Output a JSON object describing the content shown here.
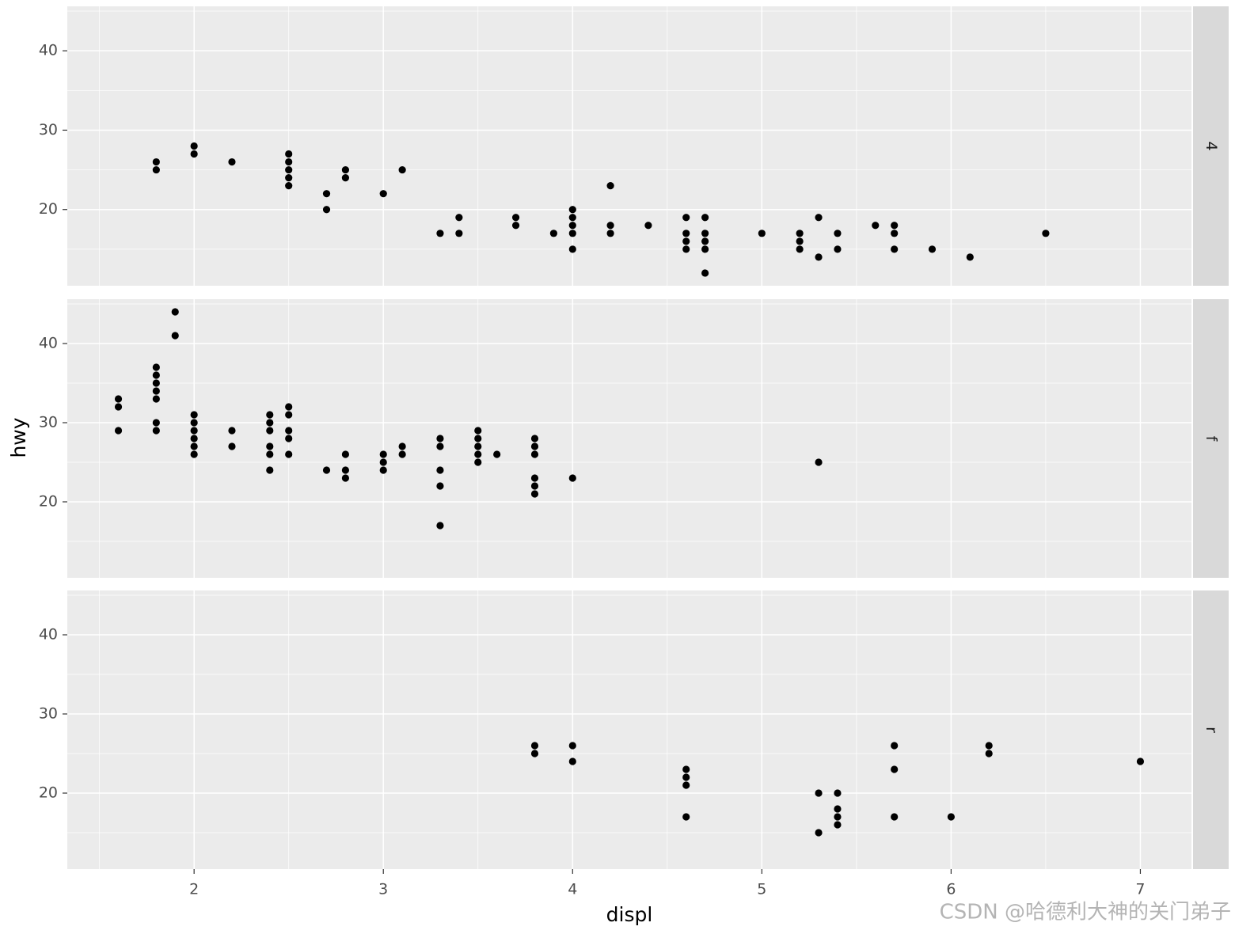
{
  "chart_data": [
    {
      "type": "scatter",
      "strip": "4",
      "color": "#000000",
      "grid": true,
      "xlim": [
        1.33,
        7.27
      ],
      "ylim": [
        10.4,
        45.6
      ],
      "yticks": [
        20,
        30,
        40
      ],
      "x": [
        1.8,
        1.8,
        2,
        2,
        2.2,
        2.5,
        2.5,
        2.5,
        2.5,
        2.5,
        2.7,
        2.7,
        2.8,
        2.8,
        3,
        3.1,
        3.3,
        3.4,
        3.4,
        3.7,
        3.7,
        3.9,
        4,
        4,
        4,
        4,
        4,
        4.2,
        4.2,
        4.2,
        4.4,
        4.6,
        4.6,
        4.6,
        4.6,
        4.7,
        4.7,
        4.7,
        4.7,
        4.7,
        5,
        5.2,
        5.2,
        5.2,
        5.3,
        5.3,
        5.4,
        5.4,
        5.6,
        5.7,
        5.7,
        5.7,
        5.9,
        6.1,
        6.5
      ],
      "values": [
        26,
        25,
        28,
        27,
        26,
        27,
        26,
        25,
        24,
        23,
        22,
        20,
        25,
        24,
        22,
        25,
        17,
        19,
        17,
        19,
        18,
        17,
        20,
        19,
        18,
        17,
        15,
        23,
        18,
        17,
        18,
        19,
        17,
        16,
        15,
        19,
        17,
        16,
        15,
        12,
        17,
        17,
        16,
        15,
        19,
        14,
        17,
        15,
        18,
        18,
        17,
        15,
        15,
        14,
        17
      ]
    },
    {
      "type": "scatter",
      "strip": "f",
      "color": "#000000",
      "grid": true,
      "ylabel": "hwy",
      "xlim": [
        1.33,
        7.27
      ],
      "ylim": [
        10.4,
        45.6
      ],
      "yticks": [
        20,
        30,
        40
      ],
      "x": [
        1.6,
        1.6,
        1.6,
        1.8,
        1.8,
        1.8,
        1.8,
        1.8,
        1.8,
        1.8,
        1.9,
        1.9,
        2,
        2,
        2,
        2,
        2,
        2,
        2.2,
        2.2,
        2.4,
        2.4,
        2.4,
        2.4,
        2.4,
        2.4,
        2.5,
        2.5,
        2.5,
        2.5,
        2.5,
        2.7,
        2.8,
        2.8,
        2.8,
        3,
        3,
        3,
        3.1,
        3.1,
        3.3,
        3.3,
        3.3,
        3.3,
        3.3,
        3.5,
        3.5,
        3.5,
        3.5,
        3.5,
        3.6,
        3.8,
        3.8,
        3.8,
        3.8,
        3.8,
        3.8,
        4,
        5.3
      ],
      "values": [
        33,
        32,
        29,
        37,
        36,
        35,
        34,
        33,
        30,
        29,
        44,
        41,
        31,
        30,
        29,
        28,
        27,
        26,
        29,
        27,
        31,
        30,
        29,
        27,
        26,
        24,
        32,
        31,
        29,
        28,
        26,
        24,
        26,
        24,
        23,
        26,
        25,
        24,
        27,
        26,
        28,
        27,
        24,
        22,
        17,
        29,
        28,
        27,
        26,
        25,
        26,
        28,
        27,
        26,
        23,
        22,
        21,
        23,
        25
      ]
    },
    {
      "type": "scatter",
      "strip": "r",
      "color": "#000000",
      "grid": true,
      "xlabel": "displ",
      "xlim": [
        1.33,
        7.27
      ],
      "ylim": [
        10.4,
        45.6
      ],
      "yticks": [
        20,
        30,
        40
      ],
      "xticks": [
        2,
        3,
        4,
        5,
        6,
        7
      ],
      "x": [
        3.8,
        3.8,
        4,
        4,
        4.6,
        4.6,
        4.6,
        4.6,
        5.3,
        5.3,
        5.4,
        5.4,
        5.4,
        5.4,
        5.7,
        5.7,
        5.7,
        6,
        6.2,
        6.2,
        7
      ],
      "values": [
        26,
        25,
        26,
        24,
        23,
        22,
        21,
        17,
        20,
        15,
        20,
        18,
        17,
        16,
        26,
        23,
        17,
        17,
        26,
        25,
        24
      ]
    }
  ],
  "watermark": "CSDN @哈德利大神的关门弟子"
}
